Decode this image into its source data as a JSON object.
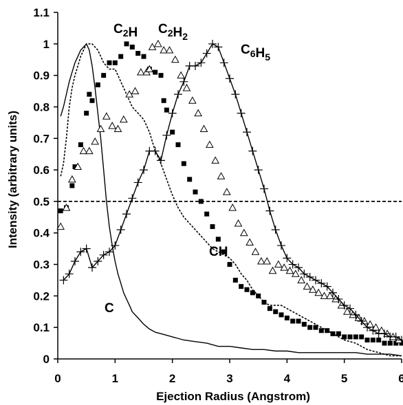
{
  "chart_data": {
    "type": "line",
    "xlabel": "Ejection Radius (Angstrom)",
    "ylabel": "Intensity (arbitrary units)",
    "xlim": [
      0,
      6
    ],
    "ylim": [
      0,
      1.1
    ],
    "x_ticks": [
      0,
      1,
      2,
      3,
      4,
      5,
      6
    ],
    "y_ticks": [
      "0",
      "0.1",
      "0.2",
      "0.3",
      "0.4",
      "0.5",
      "0.6",
      "0.7",
      "0.8",
      "0.9",
      "1",
      "1.1"
    ],
    "grid": false,
    "legend": "none",
    "reference_line": {
      "y": 0.5,
      "style": "dashed"
    },
    "series": [
      {
        "name": "C",
        "label_parts": [
          {
            "t": "C"
          }
        ],
        "style": "solid-line",
        "color": "#000000",
        "x": [
          0.05,
          0.1,
          0.15,
          0.2,
          0.25,
          0.3,
          0.35,
          0.4,
          0.45,
          0.5,
          0.55,
          0.6,
          0.65,
          0.7,
          0.75,
          0.8,
          0.85,
          0.9,
          0.95,
          1.0,
          1.05,
          1.1,
          1.15,
          1.2,
          1.25,
          1.3,
          1.4,
          1.5,
          1.6,
          1.7,
          1.8,
          1.9,
          2.0,
          2.2,
          2.4,
          2.6,
          2.8,
          3.0,
          3.2,
          3.4,
          3.6,
          3.8,
          4.0,
          4.2,
          4.4,
          4.6,
          4.8,
          5.0,
          5.2,
          5.4,
          5.6,
          5.8,
          6.0
        ],
        "y": [
          0.77,
          0.8,
          0.84,
          0.88,
          0.91,
          0.94,
          0.96,
          0.98,
          0.99,
          1.0,
          0.98,
          0.93,
          0.86,
          0.78,
          0.7,
          0.6,
          0.5,
          0.42,
          0.36,
          0.31,
          0.27,
          0.24,
          0.21,
          0.19,
          0.17,
          0.15,
          0.13,
          0.11,
          0.095,
          0.085,
          0.08,
          0.075,
          0.07,
          0.06,
          0.055,
          0.05,
          0.04,
          0.04,
          0.035,
          0.03,
          0.03,
          0.025,
          0.025,
          0.02,
          0.02,
          0.02,
          0.02,
          0.02,
          0.02,
          0.015,
          0.015,
          0.015,
          0.01
        ]
      },
      {
        "name": "CH",
        "label_parts": [
          {
            "t": "CH"
          }
        ],
        "style": "dashed-line",
        "color": "#000000",
        "x": [
          0.05,
          0.1,
          0.15,
          0.2,
          0.25,
          0.3,
          0.35,
          0.4,
          0.45,
          0.5,
          0.55,
          0.6,
          0.65,
          0.7,
          0.75,
          0.8,
          0.85,
          0.9,
          0.95,
          1.0,
          1.05,
          1.1,
          1.2,
          1.3,
          1.4,
          1.5,
          1.6,
          1.7,
          1.8,
          1.9,
          2.0,
          2.1,
          2.2,
          2.3,
          2.4,
          2.5,
          2.6,
          2.7,
          2.8,
          2.9,
          3.0,
          3.1,
          3.2,
          3.3,
          3.4,
          3.5,
          3.6,
          3.7,
          3.8,
          3.9,
          4.0,
          4.2,
          4.4,
          4.6,
          4.8,
          5.0,
          5.2,
          5.4,
          5.6,
          5.8,
          6.0
        ],
        "y": [
          0.58,
          0.62,
          0.7,
          0.8,
          0.86,
          0.9,
          0.93,
          0.96,
          0.98,
          1.0,
          1.0,
          1.0,
          0.99,
          0.98,
          0.96,
          0.94,
          0.93,
          0.92,
          0.92,
          0.92,
          0.9,
          0.88,
          0.84,
          0.8,
          0.78,
          0.76,
          0.72,
          0.66,
          0.62,
          0.57,
          0.52,
          0.48,
          0.45,
          0.43,
          0.41,
          0.39,
          0.37,
          0.35,
          0.34,
          0.33,
          0.32,
          0.3,
          0.27,
          0.25,
          0.22,
          0.2,
          0.18,
          0.17,
          0.17,
          0.17,
          0.16,
          0.14,
          0.12,
          0.1,
          0.08,
          0.06,
          0.05,
          0.03,
          0.02,
          0.01,
          0.01
        ]
      },
      {
        "name": "C2H",
        "label_parts": [
          {
            "t": "C"
          },
          {
            "t": "2",
            "sub": true
          },
          {
            "t": "H"
          }
        ],
        "style": "filled-square",
        "color": "#000000",
        "x": [
          0.05,
          0.15,
          0.25,
          0.3,
          0.4,
          0.5,
          0.55,
          0.6,
          0.7,
          0.8,
          0.9,
          1.0,
          1.1,
          1.2,
          1.3,
          1.4,
          1.5,
          1.6,
          1.7,
          1.8,
          1.85,
          1.9,
          2.0,
          2.1,
          2.2,
          2.3,
          2.4,
          2.5,
          2.6,
          2.7,
          2.8,
          2.9,
          3.0,
          3.1,
          3.2,
          3.3,
          3.4,
          3.5,
          3.6,
          3.7,
          3.8,
          3.9,
          4.0,
          4.1,
          4.2,
          4.3,
          4.4,
          4.5,
          4.6,
          4.7,
          4.8,
          4.9,
          5.0,
          5.1,
          5.2,
          5.3,
          5.4,
          5.5,
          5.6,
          5.7,
          5.8,
          5.9,
          6.0
        ],
        "y": [
          0.47,
          0.48,
          0.55,
          0.61,
          0.68,
          0.78,
          0.84,
          0.82,
          0.87,
          0.9,
          0.94,
          0.94,
          0.96,
          1.0,
          0.99,
          0.97,
          0.96,
          0.92,
          0.91,
          0.9,
          0.82,
          0.79,
          0.72,
          0.68,
          0.62,
          0.57,
          0.53,
          0.5,
          0.46,
          0.42,
          0.38,
          0.34,
          0.3,
          0.25,
          0.23,
          0.22,
          0.21,
          0.2,
          0.18,
          0.16,
          0.15,
          0.14,
          0.13,
          0.12,
          0.12,
          0.11,
          0.1,
          0.1,
          0.09,
          0.09,
          0.08,
          0.08,
          0.07,
          0.07,
          0.07,
          0.07,
          0.06,
          0.06,
          0.06,
          0.05,
          0.05,
          0.05,
          0.05
        ]
      },
      {
        "name": "C2H2",
        "label_parts": [
          {
            "t": "C"
          },
          {
            "t": "2",
            "sub": true
          },
          {
            "t": "H"
          },
          {
            "t": "2",
            "sub": true
          }
        ],
        "style": "open-triangle",
        "color": "#000000",
        "x": [
          0.05,
          0.15,
          0.25,
          0.35,
          0.45,
          0.55,
          0.65,
          0.75,
          0.85,
          0.95,
          1.05,
          1.15,
          1.25,
          1.35,
          1.45,
          1.55,
          1.6,
          1.65,
          1.75,
          1.85,
          1.95,
          2.05,
          2.15,
          2.25,
          2.35,
          2.45,
          2.55,
          2.65,
          2.75,
          2.85,
          2.95,
          3.05,
          3.15,
          3.25,
          3.35,
          3.45,
          3.55,
          3.65,
          3.75,
          3.85,
          3.95,
          4.05,
          4.15,
          4.25,
          4.35,
          4.45,
          4.55,
          4.65,
          4.75,
          4.85,
          4.95,
          5.05,
          5.15,
          5.25,
          5.35,
          5.45,
          5.55,
          5.65,
          5.75,
          5.85,
          5.95
        ],
        "y": [
          0.42,
          0.48,
          0.57,
          0.61,
          0.66,
          0.66,
          0.69,
          0.73,
          0.77,
          0.74,
          0.73,
          0.76,
          0.84,
          0.85,
          0.91,
          0.91,
          0.92,
          0.99,
          1.0,
          0.98,
          0.98,
          0.95,
          0.9,
          0.86,
          0.82,
          0.78,
          0.73,
          0.68,
          0.63,
          0.58,
          0.53,
          0.48,
          0.43,
          0.4,
          0.37,
          0.34,
          0.31,
          0.31,
          0.28,
          0.3,
          0.29,
          0.28,
          0.27,
          0.25,
          0.23,
          0.22,
          0.21,
          0.2,
          0.2,
          0.19,
          0.17,
          0.15,
          0.14,
          0.13,
          0.12,
          0.11,
          0.1,
          0.09,
          0.08,
          0.07,
          0.06
        ]
      },
      {
        "name": "C6H5",
        "label_parts": [
          {
            "t": "C"
          },
          {
            "t": "6",
            "sub": true
          },
          {
            "t": "H"
          },
          {
            "t": "5",
            "sub": true
          }
        ],
        "style": "line-plus",
        "color": "#000000",
        "x": [
          0.1,
          0.2,
          0.3,
          0.4,
          0.5,
          0.6,
          0.7,
          0.8,
          0.9,
          1.0,
          1.1,
          1.2,
          1.3,
          1.4,
          1.5,
          1.6,
          1.7,
          1.8,
          1.9,
          2.0,
          2.1,
          2.2,
          2.3,
          2.4,
          2.5,
          2.6,
          2.7,
          2.8,
          2.9,
          3.0,
          3.1,
          3.2,
          3.3,
          3.4,
          3.5,
          3.6,
          3.7,
          3.8,
          3.9,
          4.0,
          4.1,
          4.2,
          4.3,
          4.4,
          4.5,
          4.6,
          4.7,
          4.8,
          4.9,
          5.0,
          5.1,
          5.2,
          5.3,
          5.4,
          5.5,
          5.6,
          5.7,
          5.8,
          5.9,
          6.0
        ],
        "y": [
          0.25,
          0.27,
          0.31,
          0.34,
          0.35,
          0.29,
          0.31,
          0.33,
          0.34,
          0.36,
          0.41,
          0.46,
          0.51,
          0.56,
          0.6,
          0.66,
          0.66,
          0.63,
          0.71,
          0.78,
          0.84,
          0.88,
          0.93,
          0.93,
          0.94,
          0.97,
          1.0,
          0.99,
          0.94,
          0.89,
          0.84,
          0.78,
          0.72,
          0.66,
          0.6,
          0.54,
          0.47,
          0.41,
          0.36,
          0.32,
          0.3,
          0.29,
          0.27,
          0.26,
          0.25,
          0.24,
          0.23,
          0.21,
          0.19,
          0.17,
          0.16,
          0.14,
          0.12,
          0.1,
          0.09,
          0.08,
          0.08,
          0.07,
          0.07,
          0.06
        ]
      }
    ]
  }
}
